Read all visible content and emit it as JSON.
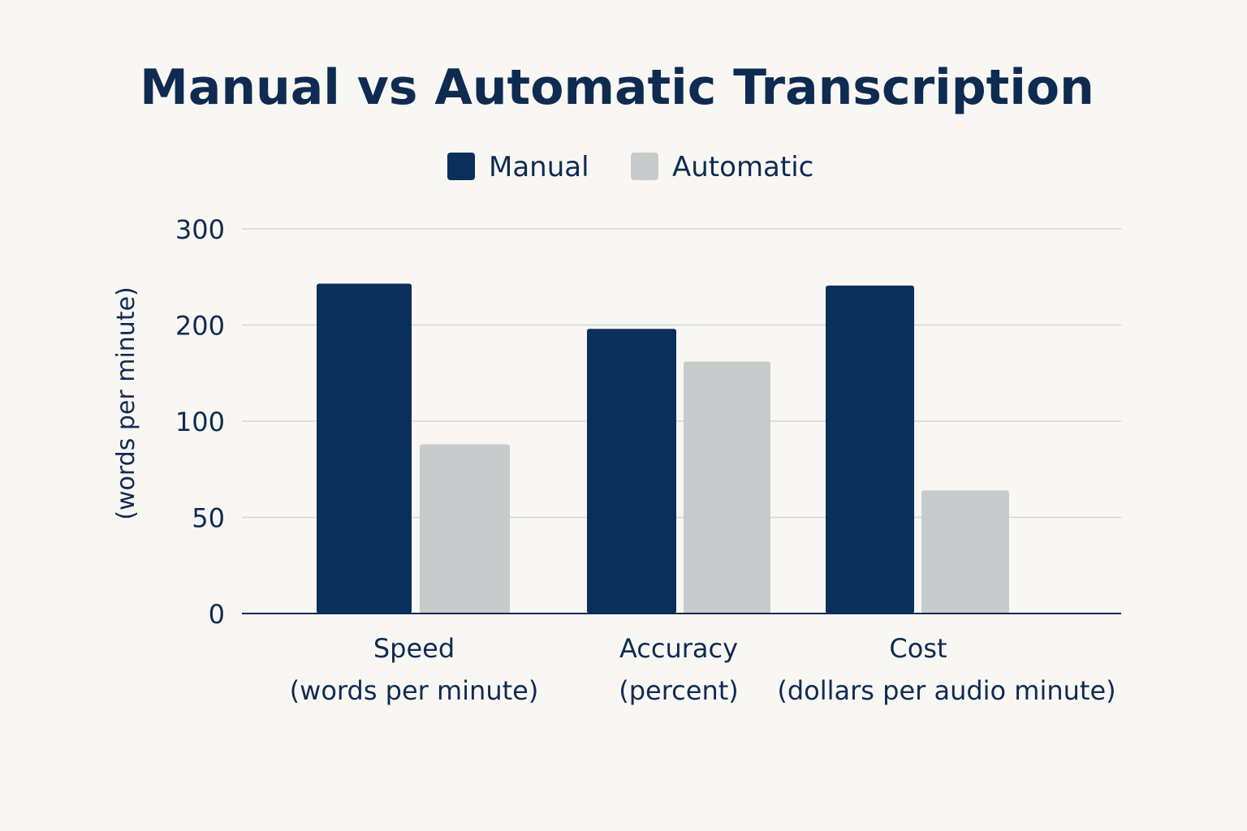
{
  "colors": {
    "manual": "#0b2f5b",
    "automatic": "#c7cbcc",
    "text": "#0f2b52",
    "grid": "#d3d6d6",
    "axis": "#0f2b52"
  },
  "chart_data": {
    "type": "bar",
    "title": "Manual vs Automatic Transcription",
    "ylabel": "(words per minute)",
    "xlabel": "",
    "categories": [
      {
        "name": "Speed",
        "sub": "(words per minute)"
      },
      {
        "name": "Accuracy",
        "sub": "(percent)"
      },
      {
        "name": "Cost",
        "sub": "(dollars per audio minute)"
      }
    ],
    "series": [
      {
        "name": "Manual",
        "values": [
          243,
          196,
          241
        ]
      },
      {
        "name": "Automatic",
        "values": [
          88,
          162,
          64
        ]
      }
    ],
    "y_ticks": [
      0,
      50,
      100,
      200,
      300
    ],
    "ylim": [
      0,
      300
    ],
    "grid": true,
    "legend_position": "top-center"
  }
}
